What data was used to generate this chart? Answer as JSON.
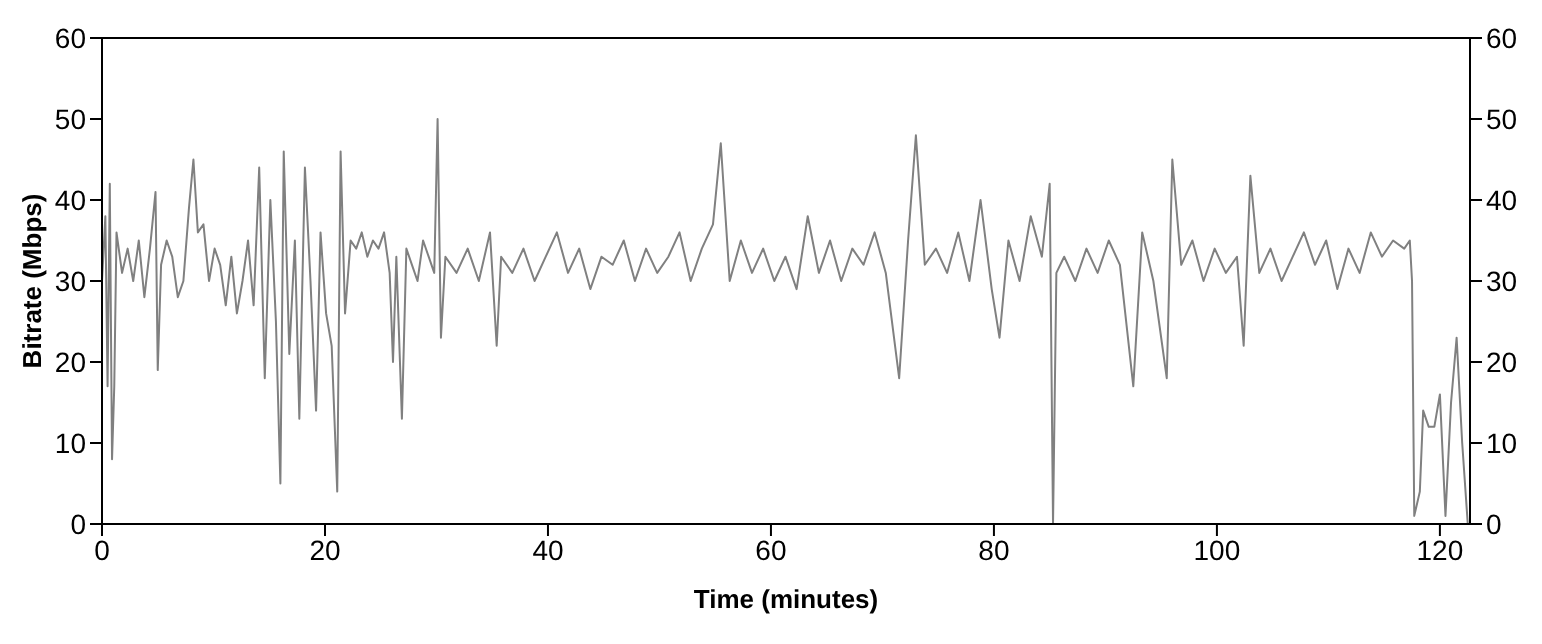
{
  "chart_data": {
    "type": "line",
    "xlabel": "Time (minutes)",
    "ylabel": "Bitrate (Mbps)",
    "xlim": [
      0,
      122.7
    ],
    "xticks": [
      0,
      20,
      40,
      60,
      80,
      100,
      120
    ],
    "ylim": [
      0,
      60
    ],
    "yticks": [
      0,
      10,
      20,
      30,
      40,
      50,
      60
    ],
    "y2lim": [
      0,
      60
    ],
    "y2ticks": [
      0,
      10,
      20,
      30,
      40,
      50,
      60
    ],
    "marker": "none",
    "line_style": "solid",
    "series": [
      {
        "color": "#808080",
        "x": [
          0,
          0.3,
          0.5,
          0.7,
          0.9,
          1.1,
          1.3,
          1.8,
          2.3,
          2.8,
          3.3,
          3.8,
          4.3,
          4.8,
          5.0,
          5.3,
          5.8,
          6.3,
          6.8,
          7.3,
          7.8,
          8.2,
          8.6,
          9.1,
          9.6,
          10.1,
          10.6,
          11.1,
          11.6,
          12.1,
          12.6,
          13.1,
          13.6,
          14.1,
          14.6,
          15.1,
          15.6,
          16.0,
          16.3,
          16.8,
          17.3,
          17.7,
          18.2,
          18.7,
          19.2,
          19.6,
          20.1,
          20.6,
          21.1,
          21.4,
          21.8,
          22.3,
          22.8,
          23.3,
          23.8,
          24.3,
          24.8,
          25.3,
          25.8,
          26.1,
          26.4,
          26.9,
          27.3,
          27.8,
          28.3,
          28.8,
          29.3,
          29.8,
          30.1,
          30.4,
          30.8,
          31.8,
          32.8,
          33.8,
          34.8,
          35.4,
          35.8,
          36.8,
          37.8,
          38.8,
          39.8,
          40.8,
          41.8,
          42.8,
          43.8,
          44.8,
          45.8,
          46.8,
          47.8,
          48.8,
          49.8,
          50.8,
          51.8,
          52.8,
          53.8,
          54.8,
          55.5,
          56.3,
          57.3,
          58.3,
          59.3,
          60.3,
          61.3,
          62.3,
          63.3,
          64.3,
          65.3,
          66.3,
          67.3,
          68.3,
          69.3,
          70.3,
          71.5,
          72.3,
          73.0,
          73.8,
          74.8,
          75.8,
          76.8,
          77.8,
          78.8,
          79.8,
          80.5,
          81.3,
          82.3,
          83.3,
          84.3,
          85.0,
          85.3,
          85.6,
          86.3,
          87.3,
          88.3,
          89.3,
          90.3,
          91.3,
          92.5,
          93.3,
          94.3,
          95.5,
          96.0,
          96.8,
          97.8,
          98.8,
          99.8,
          100.8,
          101.8,
          102.4,
          103.0,
          103.8,
          104.8,
          105.8,
          106.8,
          107.8,
          108.8,
          109.8,
          110.8,
          111.8,
          112.8,
          113.8,
          114.8,
          115.8,
          116.8,
          117.3,
          117.5,
          117.7,
          118.2,
          118.5,
          119.0,
          119.5,
          120.0,
          120.5,
          121.0,
          121.5,
          122.0,
          122.5
        ],
        "values": [
          30,
          38,
          17,
          42,
          8,
          17,
          36,
          31,
          34,
          30,
          35,
          28,
          34,
          41,
          19,
          32,
          35,
          33,
          28,
          30,
          39,
          45,
          36,
          37,
          30,
          34,
          32,
          27,
          33,
          26,
          30,
          35,
          27,
          44,
          18,
          40,
          25,
          5,
          46,
          21,
          35,
          13,
          44,
          30,
          14,
          36,
          26,
          22,
          4,
          46,
          26,
          35,
          34,
          36,
          33,
          35,
          34,
          36,
          31,
          20,
          33,
          13,
          34,
          32,
          30,
          35,
          33,
          31,
          50,
          23,
          33,
          31,
          34,
          30,
          36,
          22,
          33,
          31,
          34,
          30,
          33,
          36,
          31,
          34,
          29,
          33,
          32,
          35,
          30,
          34,
          31,
          33,
          36,
          30,
          34,
          37,
          47,
          30,
          35,
          31,
          34,
          30,
          33,
          29,
          38,
          31,
          35,
          30,
          34,
          32,
          36,
          31,
          18,
          35,
          48,
          32,
          34,
          31,
          36,
          30,
          40,
          29,
          23,
          35,
          30,
          38,
          33,
          42,
          0,
          31,
          33,
          30,
          34,
          31,
          35,
          32,
          17,
          36,
          30,
          18,
          45,
          32,
          35,
          30,
          34,
          31,
          33,
          22,
          43,
          31,
          34,
          30,
          33,
          36,
          32,
          35,
          29,
          34,
          31,
          36,
          33,
          35,
          34,
          35,
          30,
          1,
          4,
          14,
          12,
          12,
          16,
          1,
          15,
          23,
          10,
          0
        ]
      }
    ]
  }
}
